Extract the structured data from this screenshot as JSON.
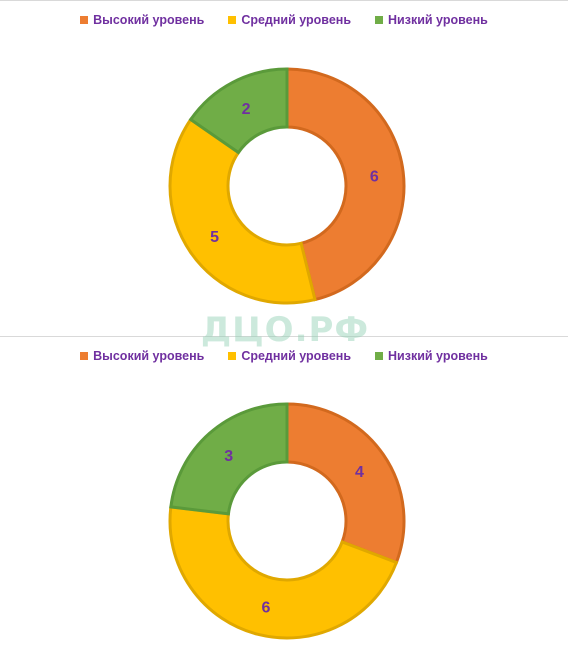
{
  "colors": {
    "high": "#ED7D31",
    "high_border": "#D2691E",
    "mid": "#FFC000",
    "mid_border": "#E0A800",
    "low": "#70AD47",
    "low_border": "#5A9A3A",
    "legend_text": "#7030A0",
    "label_text": "#7030A0"
  },
  "legend": {
    "items": [
      {
        "label": "Высокий уровень",
        "color": "#ED7D31"
      },
      {
        "label": "Средний уровень",
        "color": "#FFC000"
      },
      {
        "label": "Низкий уровень",
        "color": "#70AD47"
      }
    ]
  },
  "watermark": "ДЦО.РФ",
  "chart_data": [
    {
      "type": "pie",
      "donut": true,
      "title": "",
      "categories": [
        "Высокий уровень",
        "Средний уровень",
        "Низкий уровень"
      ],
      "values": [
        6,
        5,
        2
      ],
      "colors": [
        "#ED7D31",
        "#FFC000",
        "#70AD47"
      ],
      "legend": "top"
    },
    {
      "type": "pie",
      "donut": true,
      "title": "",
      "categories": [
        "Высокий уровень",
        "Средний уровень",
        "Низкий уровень"
      ],
      "values": [
        4,
        6,
        3
      ],
      "colors": [
        "#ED7D31",
        "#FFC000",
        "#70AD47"
      ],
      "legend": "top"
    }
  ]
}
